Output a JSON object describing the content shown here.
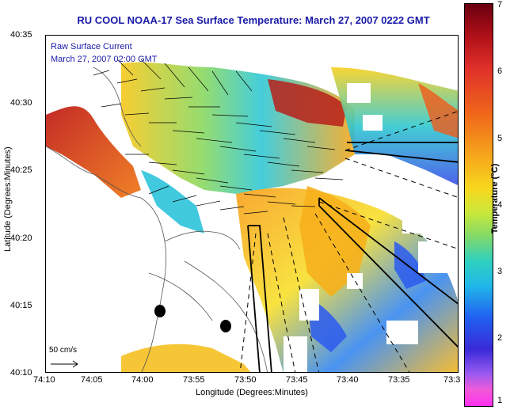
{
  "title": "RU COOL  NOAA-17  Sea Surface Temperature:  March 27, 2007 0222 GMT",
  "overlay": {
    "line1": "Raw Surface Current",
    "line2": "March 27, 2007 02:00 GMT"
  },
  "axes": {
    "ylabel": "Latitude (Degrees:Minutes)",
    "xlabel": "Longitude (Degrees:Minutes)",
    "yticks": [
      "40:35",
      "40:30",
      "40:25",
      "40:20",
      "40:15",
      "40:10"
    ],
    "xticks": [
      "74:10",
      "74:05",
      "74:00",
      "73:55",
      "73:50",
      "73:45",
      "73:40",
      "73:35",
      "73:3"
    ]
  },
  "scale": {
    "label": "50 cm/s"
  },
  "colorbar": {
    "label": "Temperature (°C)",
    "ticks": [
      "7",
      "6",
      "5",
      "4",
      "3",
      "2",
      "1"
    ],
    "range": [
      1,
      7
    ]
  },
  "colors": {
    "title": "#1a1aa8",
    "land": "#ffffff",
    "warm": "#d02020",
    "cool": "#2060f0"
  }
}
